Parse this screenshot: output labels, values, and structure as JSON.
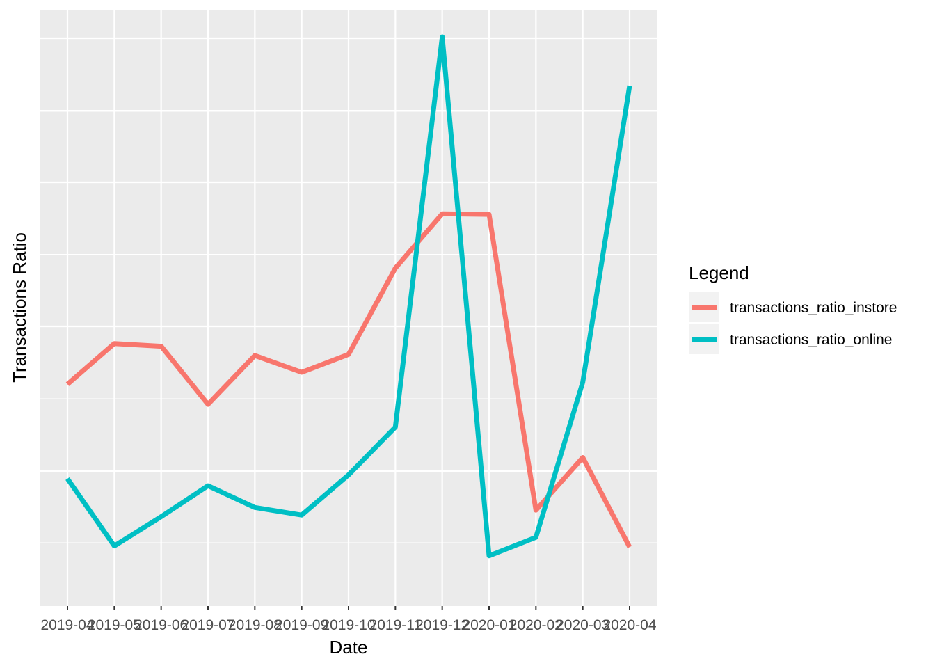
{
  "chart_data": {
    "type": "line",
    "title": "",
    "xlabel": "Date",
    "ylabel": "Transactions Ratio",
    "x": [
      "2019-04",
      "2019-05",
      "2019-06",
      "2019-07",
      "2019-08",
      "2019-09",
      "2019-10",
      "2019-11",
      "2019-12",
      "2020-01",
      "2020-02",
      "2020-03",
      "2020-04"
    ],
    "ylim": [
      0,
      1
    ],
    "y_tick_labels_shown": false,
    "grid": true,
    "legend": {
      "title": "Legend",
      "placement": "right"
    },
    "series": [
      {
        "name": "transactions_ratio_instore",
        "color": "#F8766D",
        "values": [
          0.36,
          0.435,
          0.43,
          0.323,
          0.413,
          0.382,
          0.415,
          0.574,
          0.674,
          0.673,
          0.128,
          0.225,
          0.06
        ]
      },
      {
        "name": "transactions_ratio_online",
        "color": "#00BFC4",
        "values": [
          0.186,
          0.062,
          0.116,
          0.173,
          0.133,
          0.119,
          0.193,
          0.281,
          1.0,
          0.044,
          0.078,
          0.364,
          0.91
        ]
      }
    ]
  }
}
